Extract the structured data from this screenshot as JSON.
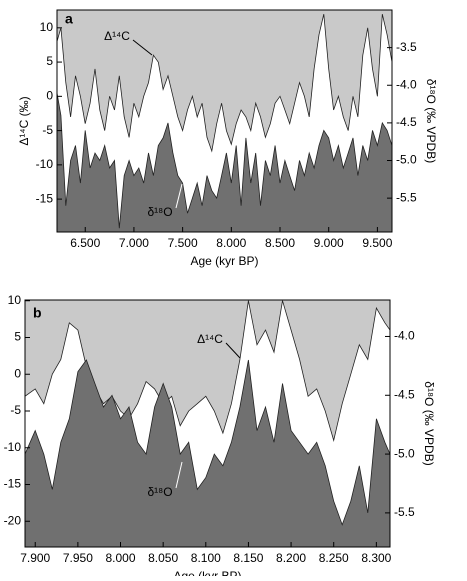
{
  "chart_data": [
    {
      "type": "area",
      "panel": "a",
      "xlabel": "Age (kyr BP)",
      "ylabel": "Δ¹⁴C (‰)",
      "y2label": "δ¹⁸O (‰ VPDB)",
      "xlim": [
        6.21,
        9.65
      ],
      "ylim": [
        -19.8,
        12.6
      ],
      "y2lim": [
        -5.95,
        -3.0
      ],
      "xticks": [
        {
          "value": 6.5,
          "label": "6.500"
        },
        {
          "value": 7,
          "label": "7.000"
        },
        {
          "value": 7.5,
          "label": "7.500"
        },
        {
          "value": 8,
          "label": "8.000"
        },
        {
          "value": 8.5,
          "label": "8.500"
        },
        {
          "value": 9,
          "label": "9.000"
        },
        {
          "value": 9.5,
          "label": "9.500"
        }
      ],
      "yticks": [
        -15,
        -10,
        -5,
        0,
        5,
        10
      ],
      "y2ticks": [
        -3.5,
        {
          "value": -4,
          "label": "-4.0"
        },
        -4.5,
        {
          "value": -5,
          "label": "-5.0"
        },
        -5.5
      ],
      "x": [
        6.21,
        6.25,
        6.3,
        6.35,
        6.4,
        6.45,
        6.5,
        6.55,
        6.6,
        6.65,
        6.7,
        6.75,
        6.8,
        6.85,
        6.9,
        6.95,
        7.0,
        7.05,
        7.1,
        7.15,
        7.2,
        7.25,
        7.3,
        7.35,
        7.4,
        7.45,
        7.5,
        7.55,
        7.6,
        7.65,
        7.7,
        7.75,
        7.8,
        7.85,
        7.9,
        7.95,
        8.0,
        8.05,
        8.1,
        8.15,
        8.2,
        8.25,
        8.3,
        8.35,
        8.4,
        8.45,
        8.5,
        8.55,
        8.6,
        8.65,
        8.7,
        8.75,
        8.8,
        8.85,
        8.9,
        8.95,
        9.0,
        9.05,
        9.1,
        9.15,
        9.2,
        9.25,
        9.3,
        9.35,
        9.4,
        9.45,
        9.5,
        9.55,
        9.6,
        9.65
      ],
      "series": [
        {
          "name": "Δ¹⁴C",
          "color": "#c9c9c9",
          "values": [
            8,
            10,
            2,
            -3,
            3,
            0,
            -4,
            -1,
            4,
            -2,
            -5,
            0,
            -2,
            3,
            -3,
            -6,
            -1,
            -3,
            0,
            2,
            6,
            5,
            1,
            3,
            0,
            -3,
            -5,
            -2,
            0,
            -3,
            -1,
            -6,
            -8,
            -4,
            -1,
            -5,
            -7,
            -4,
            -2,
            -3,
            -5,
            -1,
            -3,
            -6,
            -4,
            -1,
            0,
            -2,
            -4,
            -1,
            2,
            0,
            -3,
            4,
            9,
            12,
            4,
            -2,
            0,
            -3,
            -5,
            0,
            -3,
            6,
            10,
            4,
            0,
            12,
            9,
            5
          ]
        },
        {
          "name": "δ¹⁸O",
          "color": "#707070",
          "axis": "y2",
          "values": [
            -4.1,
            -4.4,
            -5.6,
            -5.0,
            -4.8,
            -5.3,
            -4.6,
            -5.1,
            -4.9,
            -5.0,
            -4.8,
            -5.1,
            -5.0,
            -5.9,
            -5.2,
            -5.0,
            -5.2,
            -5.1,
            -5.3,
            -4.9,
            -5.2,
            -4.8,
            -4.7,
            -4.5,
            -4.9,
            -5.2,
            -5.3,
            -5.7,
            -5.5,
            -5.3,
            -5.6,
            -5.2,
            -5.4,
            -5.5,
            -5.2,
            -4.9,
            -5.3,
            -4.8,
            -5.6,
            -4.7,
            -5.3,
            -4.9,
            -5.6,
            -5.0,
            -5.2,
            -4.8,
            -5.3,
            -5.0,
            -5.2,
            -5.4,
            -5.0,
            -5.2,
            -4.9,
            -5.1,
            -4.8,
            -4.6,
            -4.7,
            -5.0,
            -4.8,
            -5.1,
            -4.9,
            -4.7,
            -5.2,
            -4.8,
            -5.0,
            -4.6,
            -4.8,
            -4.5,
            -4.6,
            -4.8
          ]
        }
      ]
    },
    {
      "type": "area",
      "panel": "b",
      "xlabel": "Age (kyr BP)",
      "ylabel": "Δ¹⁴C (‰)",
      "y2label": "δ¹⁸O (‰ VPDB)",
      "xlim": [
        7.888,
        8.316
      ],
      "ylim": [
        -23.5,
        10.1
      ],
      "y2lim": [
        -5.79,
        -3.69
      ],
      "xticks": [
        {
          "value": 7.9,
          "label": "7.900"
        },
        {
          "value": 7.95,
          "label": "7.950"
        },
        {
          "value": 8,
          "label": "8.000"
        },
        {
          "value": 8.05,
          "label": "8.050"
        },
        {
          "value": 8.1,
          "label": "8.100"
        },
        {
          "value": 8.15,
          "label": "8.150"
        },
        {
          "value": 8.2,
          "label": "8.200"
        },
        {
          "value": 8.25,
          "label": "8.250"
        },
        {
          "value": 8.3,
          "label": "8.300"
        }
      ],
      "yticks": [
        -20,
        -15,
        -10,
        -5,
        0,
        5,
        10
      ],
      "y2ticks": [
        {
          "value": -4,
          "label": "-4.0"
        },
        -4.5,
        {
          "value": -5,
          "label": "-5.0"
        },
        -5.5
      ],
      "x": [
        7.888,
        7.9,
        7.91,
        7.92,
        7.93,
        7.94,
        7.95,
        7.96,
        7.97,
        7.98,
        7.99,
        8.0,
        8.01,
        8.02,
        8.03,
        8.04,
        8.05,
        8.06,
        8.07,
        8.08,
        8.09,
        8.1,
        8.11,
        8.12,
        8.13,
        8.14,
        8.15,
        8.16,
        8.17,
        8.18,
        8.19,
        8.2,
        8.21,
        8.22,
        8.23,
        8.24,
        8.25,
        8.26,
        8.27,
        8.28,
        8.29,
        8.3,
        8.31,
        8.316
      ],
      "series": [
        {
          "name": "Δ¹⁴C",
          "color": "#c9c9c9",
          "values": [
            -3,
            -2,
            -4,
            0,
            2,
            7,
            6,
            1,
            -2,
            -4,
            -3,
            -5,
            -6,
            -4,
            -1,
            -2,
            -4,
            -3,
            -7,
            -5,
            -4,
            -3,
            -5,
            -8,
            -4,
            2,
            10,
            4,
            6,
            3,
            10,
            6,
            2,
            -3,
            -2,
            -5,
            -9,
            -4,
            0,
            4,
            2,
            9,
            7,
            6
          ]
        },
        {
          "name": "δ¹⁸O",
          "color": "#707070",
          "axis": "y2",
          "values": [
            -5.0,
            -4.8,
            -5.0,
            -5.3,
            -4.9,
            -4.7,
            -4.3,
            -4.2,
            -4.4,
            -4.6,
            -4.5,
            -4.7,
            -4.6,
            -4.9,
            -5.0,
            -4.6,
            -4.4,
            -4.6,
            -5.0,
            -4.9,
            -5.3,
            -5.2,
            -5.0,
            -5.1,
            -4.9,
            -4.6,
            -4.2,
            -4.8,
            -4.6,
            -4.9,
            -4.4,
            -4.8,
            -4.9,
            -5.0,
            -4.9,
            -5.1,
            -5.4,
            -5.6,
            -5.4,
            -5.1,
            -5.5,
            -4.7,
            -4.9,
            -5.0
          ]
        }
      ]
    }
  ]
}
